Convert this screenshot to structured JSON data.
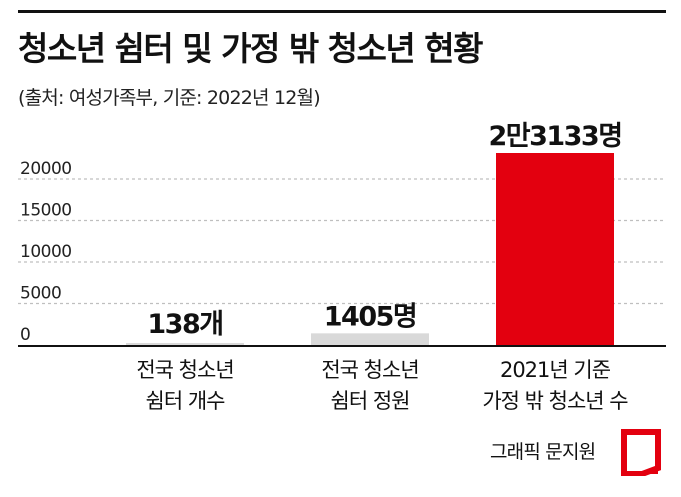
{
  "title": "청소년 쉼터 및 가정 밖 청소년 현황",
  "subtitle": "(출처: 여성가족부, 기준: 2022년 12월)",
  "credit": "그래픽 문지원",
  "colors": {
    "highlight": "#e3000f",
    "neutral": "#d9d9d9",
    "grid": "#bfbfbf",
    "axis": "#111111"
  },
  "chart_data": {
    "type": "bar",
    "categories": [
      [
        "전국 청소년",
        "쉼터 개수"
      ],
      [
        "전국 청소년",
        "쉼터 정원"
      ],
      [
        "2021년 기준",
        "가정 밖 청소년 수"
      ]
    ],
    "values": [
      138,
      1405,
      23133
    ],
    "data_labels": [
      "138개",
      "1405명",
      "2만3133명"
    ],
    "highlight_index": 2,
    "yticks": [
      0,
      5000,
      10000,
      15000,
      20000
    ],
    "ylim": [
      0,
      23133
    ],
    "grid": true
  }
}
